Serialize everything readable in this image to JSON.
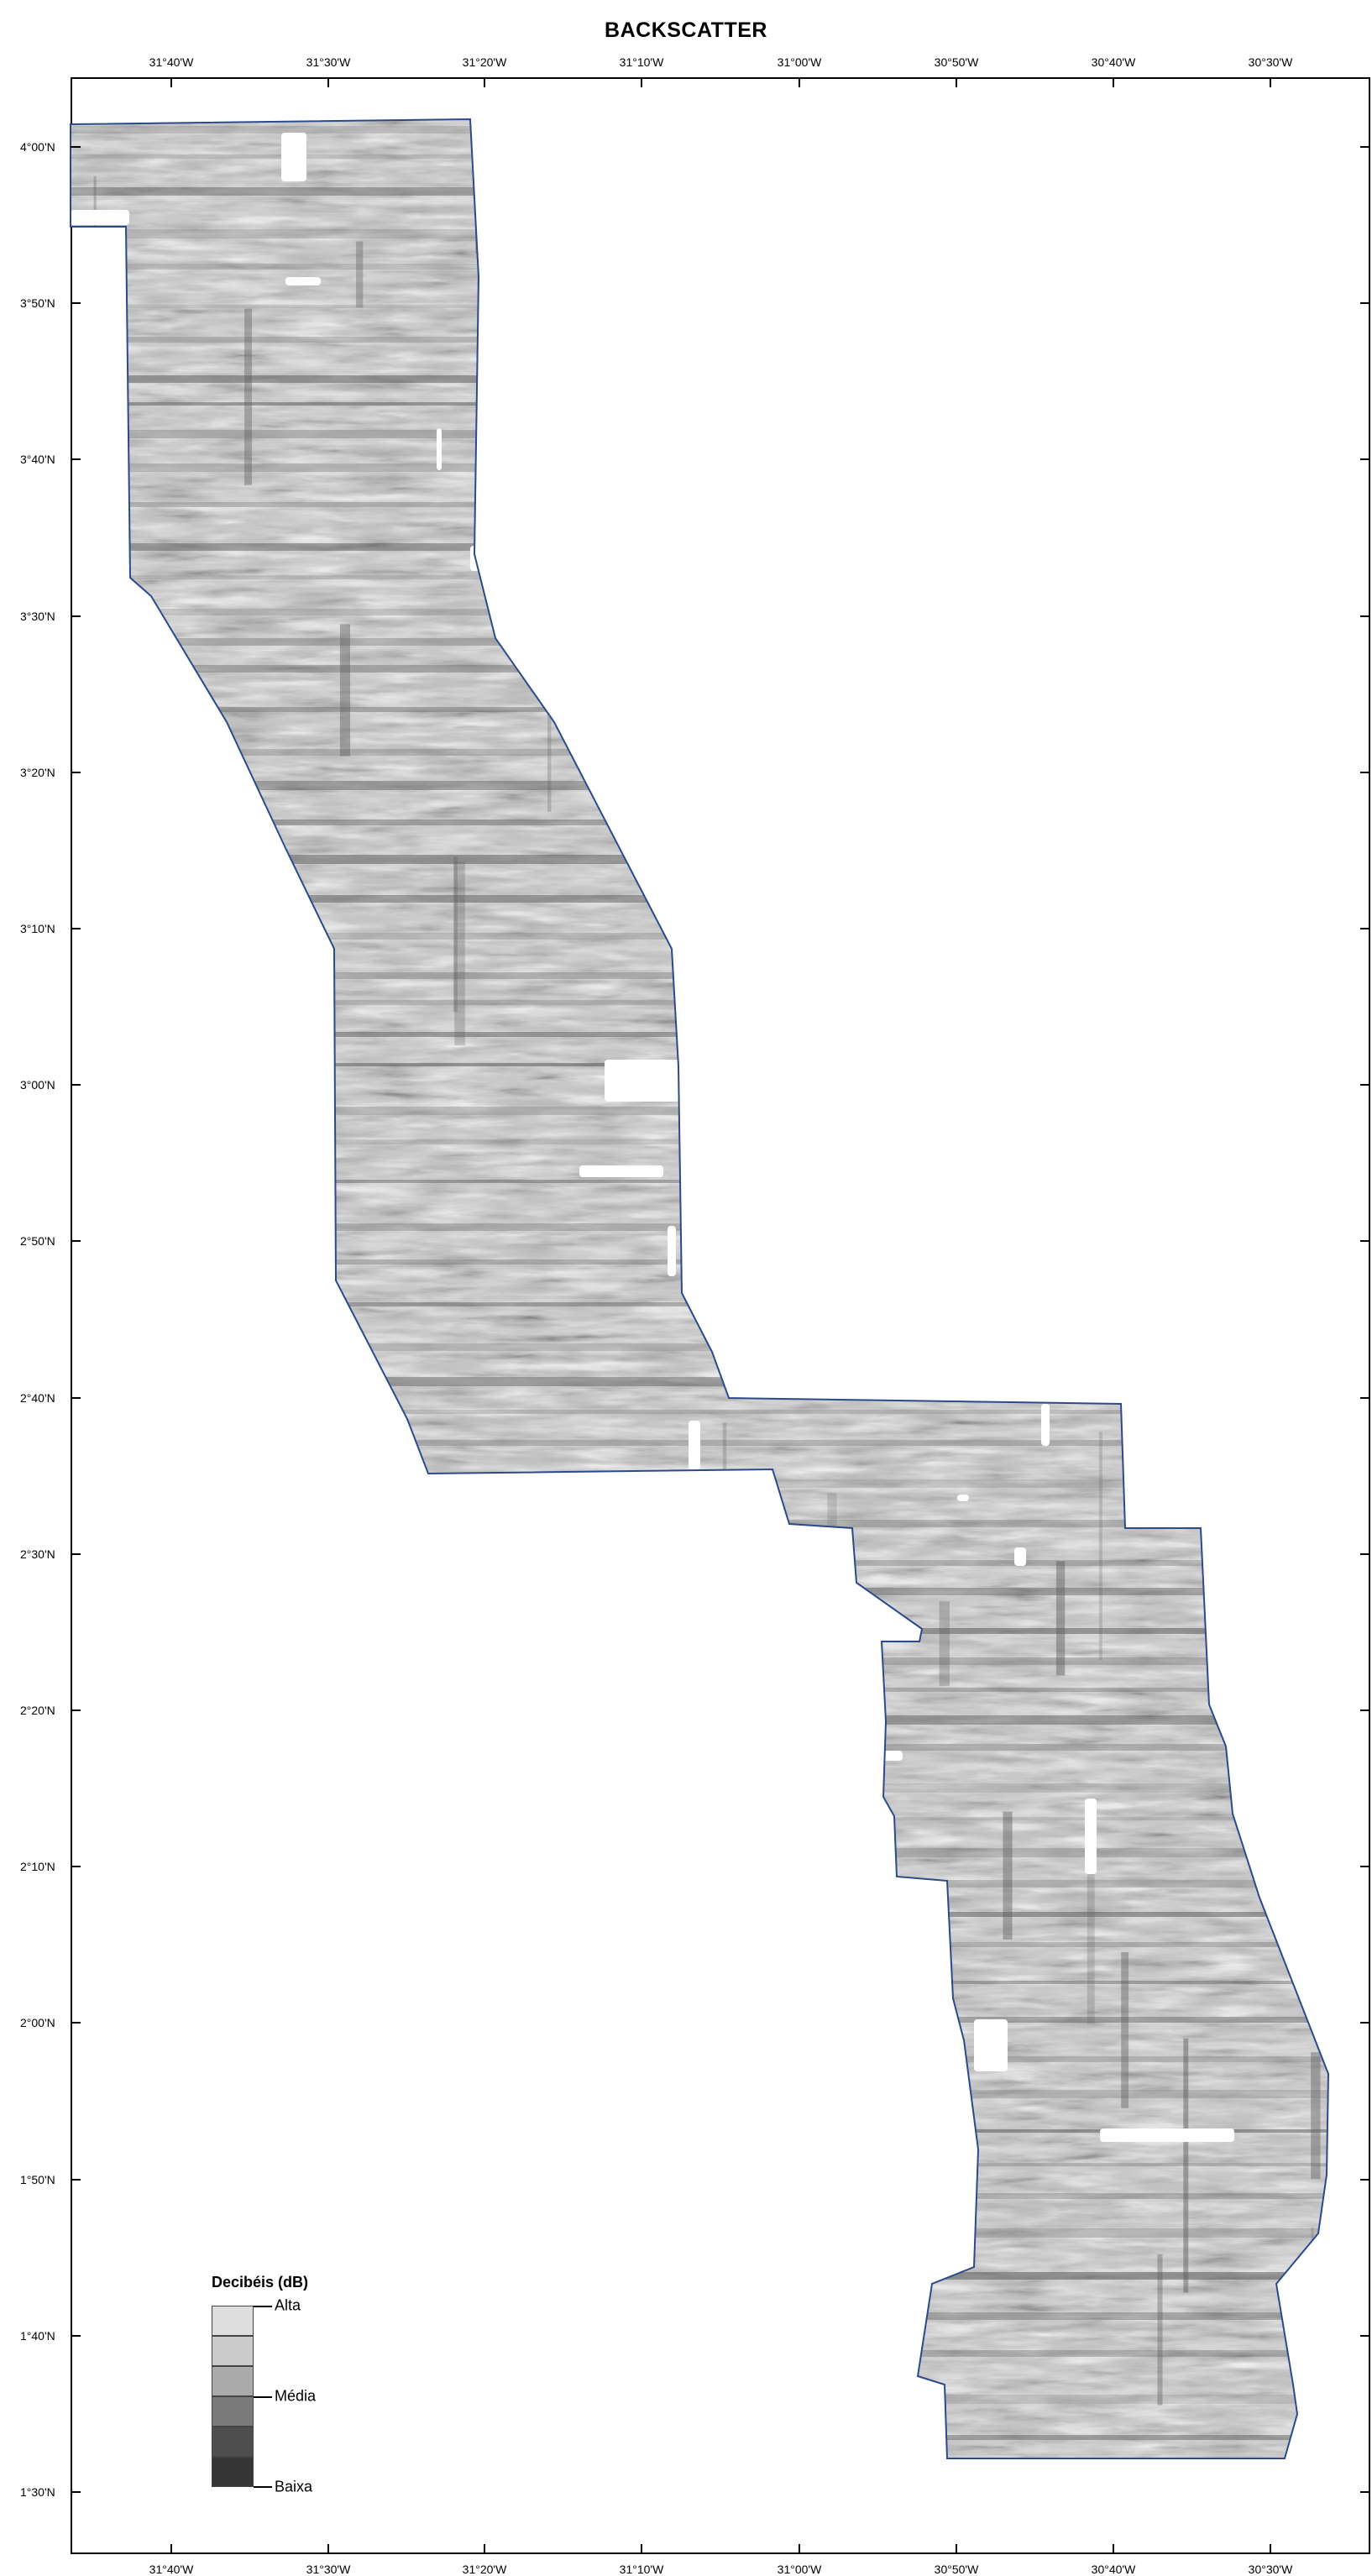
{
  "map": {
    "title": "BACKSCATTER",
    "top_labels": [
      "31°40'W",
      "31°30'W",
      "31°20'W",
      "31°10'W",
      "31°00'W",
      "30°50'W",
      "30°40'W",
      "30°30'W"
    ],
    "bottom_labels": [
      "31°40'W",
      "31°30'W",
      "31°20'W",
      "31°10'W",
      "31°00'W",
      "30°50'W",
      "30°40'W",
      "30°30'W"
    ],
    "left_labels": [
      "4°00'N",
      "3°50'N",
      "3°40'N",
      "3°30'N",
      "3°20'N",
      "3°10'N",
      "3°00'N",
      "2°50'N",
      "2°40'N",
      "2°30'N",
      "2°20'N",
      "2°10'N",
      "2°00'N",
      "1°50'N",
      "1°40'N",
      "1°30'N"
    ],
    "survey_outline_color": "#2b4a8c",
    "backscatter_colors": [
      "#bfbfbf",
      "#8a8a8a",
      "#5a5a5a",
      "#e8e8e8"
    ]
  },
  "legend": {
    "title": "Decibéis (dB)",
    "labels": {
      "high": "Alta",
      "mid": "Média",
      "low": "Baixa"
    },
    "swatches": [
      "#dedede",
      "#cbcbcb",
      "#ababab",
      "#7a7a7a",
      "#4e4e4e",
      "#363636"
    ]
  }
}
